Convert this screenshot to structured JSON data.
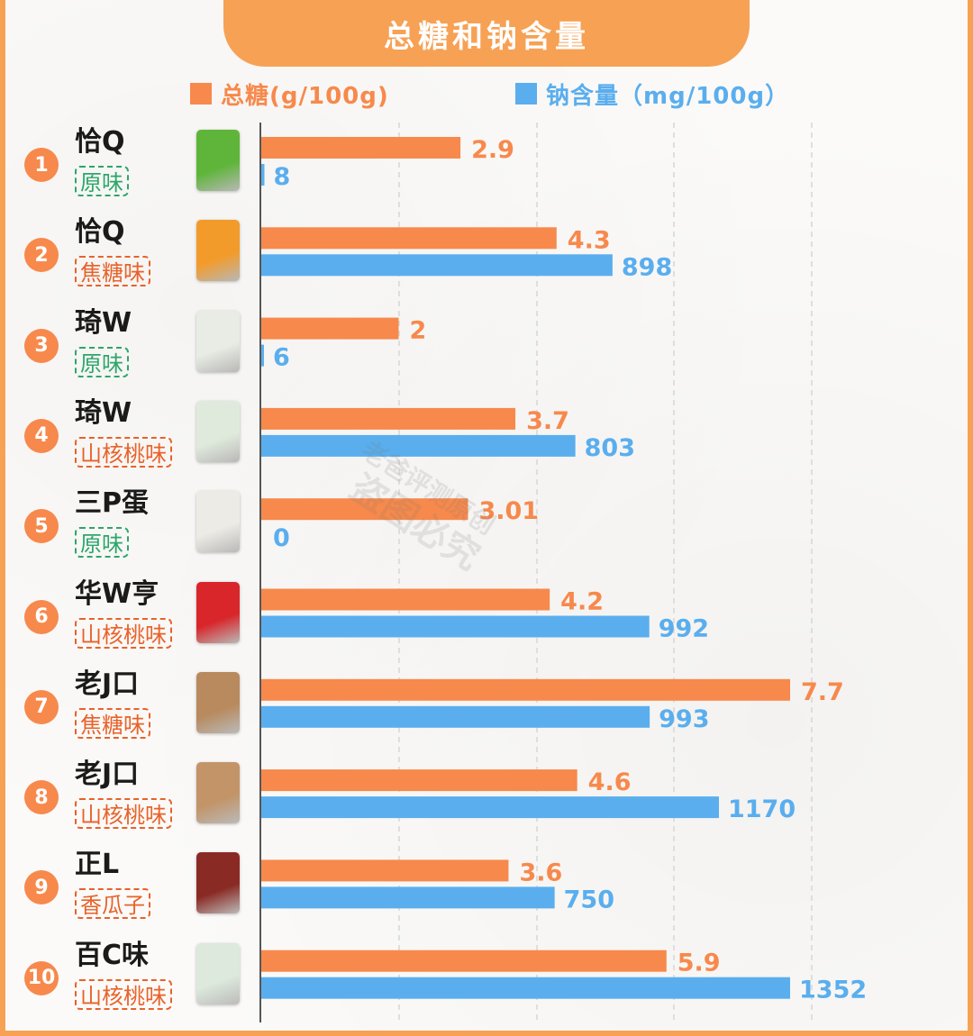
{
  "title": "总糖和钠含量",
  "legend": {
    "sugar": "总糖(g/100g)",
    "sodium": "钠含量（mg/100g）"
  },
  "colors": {
    "sugar": "#f7894c",
    "sodium": "#5aaeee",
    "accent": "#f7a154",
    "flavor_green": "#2da66a",
    "flavor_orange": "#e8622a"
  },
  "watermark": {
    "line1": "老爸评测原创",
    "line2": "盗图必究"
  },
  "products": [
    {
      "rank": "1",
      "brand": "恰Q",
      "flavor": "原味",
      "flavor_color": "green",
      "package_color": "#5fb53a"
    },
    {
      "rank": "2",
      "brand": "恰Q",
      "flavor": "焦糖味",
      "flavor_color": "orange",
      "package_color": "#f39b2a"
    },
    {
      "rank": "3",
      "brand": "琦W",
      "flavor": "原味",
      "flavor_color": "green",
      "package_color": "#e8ece4"
    },
    {
      "rank": "4",
      "brand": "琦W",
      "flavor": "山核桃味",
      "flavor_color": "orange",
      "package_color": "#dfeadc"
    },
    {
      "rank": "5",
      "brand": "三P蛋",
      "flavor": "原味",
      "flavor_color": "green",
      "package_color": "#ecebe6"
    },
    {
      "rank": "6",
      "brand": "华W亨",
      "flavor": "山核桃味",
      "flavor_color": "orange",
      "package_color": "#d8262a"
    },
    {
      "rank": "7",
      "brand": "老J口",
      "flavor": "焦糖味",
      "flavor_color": "orange",
      "package_color": "#b88a5e"
    },
    {
      "rank": "8",
      "brand": "老J口",
      "flavor": "山核桃味",
      "flavor_color": "orange",
      "package_color": "#c29468"
    },
    {
      "rank": "9",
      "brand": "正L",
      "flavor": "香瓜子",
      "flavor_color": "orange",
      "package_color": "#8a2a24"
    },
    {
      "rank": "10",
      "brand": "百C味",
      "flavor": "山核桃味",
      "flavor_color": "orange",
      "package_color": "#dce9dc"
    }
  ],
  "chart_data": {
    "type": "bar",
    "orientation": "horizontal",
    "title": "总糖和钠含量",
    "legend_position": "top",
    "grid": true,
    "series": [
      {
        "name": "总糖(g/100g)",
        "values": [
          2.9,
          4.3,
          2,
          3.7,
          3.01,
          4.2,
          7.7,
          4.6,
          3.6,
          5.9
        ],
        "labels": [
          "2.9",
          "4.3",
          "2",
          "3.7",
          "3.01",
          "4.2",
          "7.7",
          "4.6",
          "3.6",
          "5.9"
        ],
        "scale_max": 7.7
      },
      {
        "name": "钠含量（mg/100g）",
        "values": [
          8,
          898,
          6,
          803,
          0,
          992,
          993,
          1170,
          750,
          1352
        ],
        "labels": [
          "8",
          "898",
          "6",
          "803",
          "0",
          "992",
          "993",
          "1170",
          "750",
          "1352"
        ],
        "scale_max": 1352
      }
    ]
  }
}
